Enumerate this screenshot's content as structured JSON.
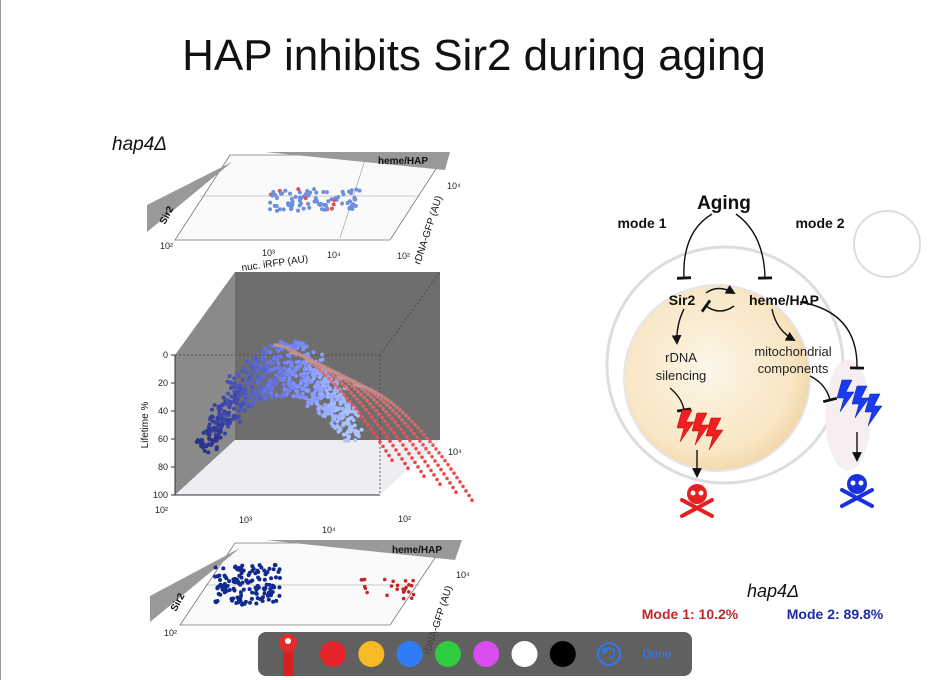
{
  "title": "HAP inhibits Sir2 during aging",
  "left": {
    "strain": "hap4Δ",
    "top_panel": {
      "banner": "heme/HAP",
      "side": "Sir2",
      "x_label": "nuc. iRFP (AU)",
      "y_label": "rDNA-GFP (AU)",
      "x_ticks": [
        "10²",
        "10³",
        "10⁴"
      ],
      "y_ticks": [
        "10²",
        "10⁴"
      ]
    },
    "main_panel": {
      "y_label": "Lifetime %",
      "y_ticks": [
        0,
        20,
        40,
        60,
        80,
        100
      ],
      "x_ticks": [
        "10²",
        "10³",
        "10⁴"
      ],
      "z_ticks": [
        "10²",
        "10⁴"
      ]
    },
    "bottom_panel": {
      "banner": "heme/HAP",
      "side": "Sir2",
      "y_label": "rDNA-GFP (AU)",
      "x_ticks": [
        "10²"
      ],
      "y_ticks": [
        "10⁴"
      ]
    }
  },
  "diagram": {
    "aging": "Aging",
    "mode1": "mode 1",
    "mode2": "mode 2",
    "sir2": "Sir2",
    "heme": "heme/HAP",
    "rdna": [
      "rDNA",
      "silencing"
    ],
    "mito": [
      "mitochondrial",
      "components"
    ]
  },
  "result": {
    "strain": "hap4Δ",
    "mode1": "Mode 1: 10.2%",
    "mode2": "Mode 2: 89.8%"
  },
  "toolbar": {
    "colors": [
      "#e5232a",
      "#f7b924",
      "#2f7cf6",
      "#2ecc40",
      "#d94df0",
      "#ffffff",
      "#000000"
    ],
    "done": "Done"
  }
}
